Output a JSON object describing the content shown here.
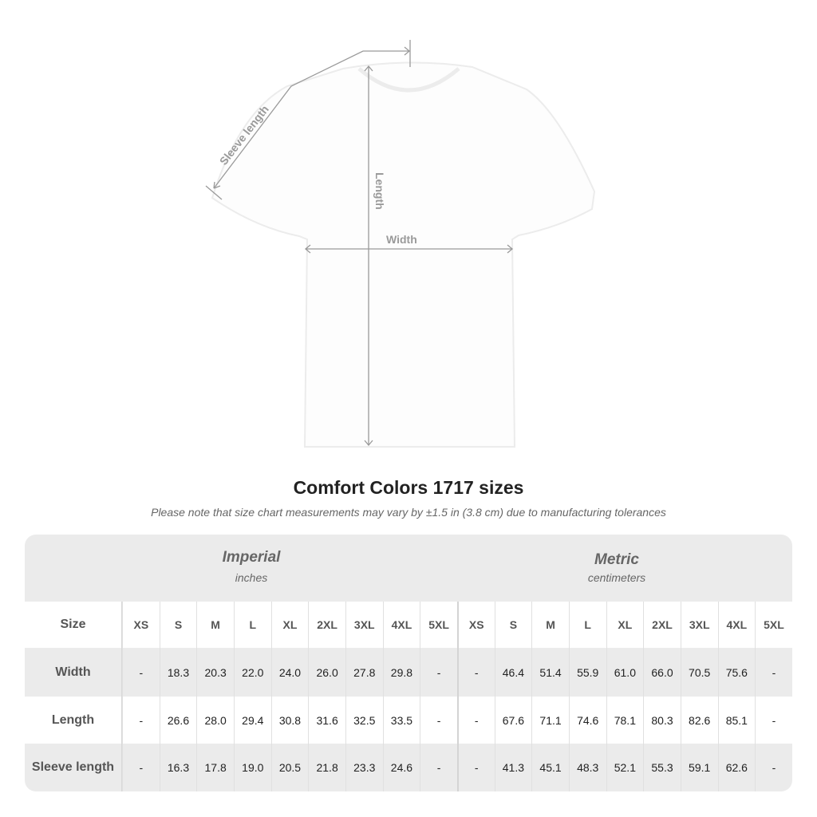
{
  "diagram": {
    "labels": {
      "sleeve": "Sleeve length",
      "length": "Length",
      "width": "Width"
    },
    "line_color": "#9a9a9a"
  },
  "title": "Comfort Colors 1717 sizes",
  "note": "Please note that size chart measurements may vary by ±1.5 in (3.8 cm) due to manufacturing tolerances",
  "table": {
    "imperial": {
      "title": "Imperial",
      "unit": "inches"
    },
    "metric": {
      "title": "Metric",
      "unit": "centimeters"
    },
    "size_label": "Size",
    "sizes": [
      "XS",
      "S",
      "M",
      "L",
      "XL",
      "2XL",
      "3XL",
      "4XL",
      "5XL"
    ],
    "rows": [
      {
        "label": "Width",
        "imperial": [
          "-",
          "18.3",
          "20.3",
          "22.0",
          "24.0",
          "26.0",
          "27.8",
          "29.8",
          "-"
        ],
        "metric": [
          "-",
          "46.4",
          "51.4",
          "55.9",
          "61.0",
          "66.0",
          "70.5",
          "75.6",
          "-"
        ]
      },
      {
        "label": "Length",
        "imperial": [
          "-",
          "26.6",
          "28.0",
          "29.4",
          "30.8",
          "31.6",
          "32.5",
          "33.5",
          "-"
        ],
        "metric": [
          "-",
          "67.6",
          "71.1",
          "74.6",
          "78.1",
          "80.3",
          "82.6",
          "85.1",
          "-"
        ]
      },
      {
        "label": "Sleeve length",
        "imperial": [
          "-",
          "16.3",
          "17.8",
          "19.0",
          "20.5",
          "21.8",
          "23.3",
          "24.6",
          "-"
        ],
        "metric": [
          "-",
          "41.3",
          "45.1",
          "48.3",
          "52.1",
          "55.3",
          "59.1",
          "62.6",
          "-"
        ]
      }
    ]
  }
}
